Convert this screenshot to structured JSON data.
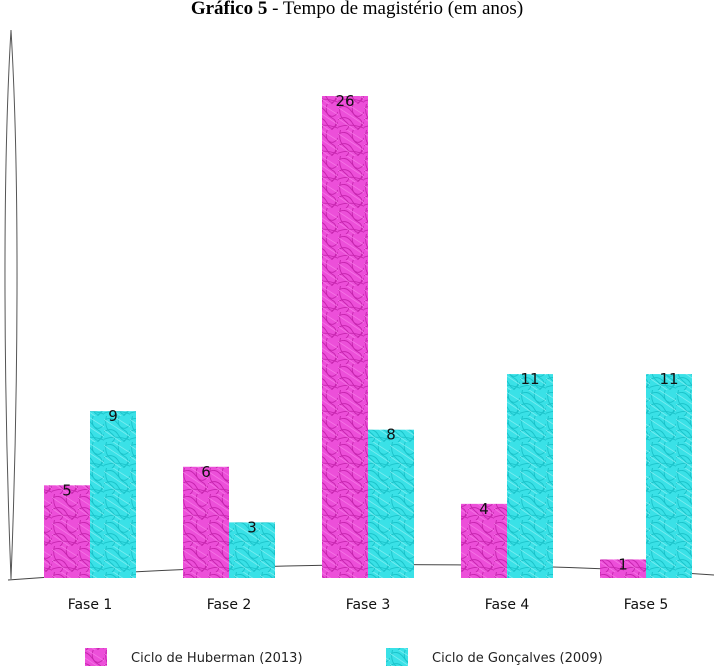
{
  "chart_data": {
    "type": "bar",
    "title_prefix": "Gráfico 5",
    "title_rest": " - Tempo de magistério (em anos)",
    "categories": [
      "Fase 1",
      "Fase 2",
      "Fase 3",
      "Fase 4",
      "Fase 5"
    ],
    "series": [
      {
        "name": "Ciclo de Huberman (2013)",
        "values": [
          5,
          6,
          26,
          4,
          1
        ],
        "color": "#e62bd0"
      },
      {
        "name": "Ciclo de Gonçalves (2009)",
        "values": [
          9,
          3,
          8,
          11,
          11
        ],
        "color": "#24dde3"
      }
    ],
    "xlabel": "",
    "ylabel": "",
    "ylim": [
      0,
      26
    ],
    "grid": false,
    "legend": "bottom",
    "style": "hand-drawn"
  }
}
